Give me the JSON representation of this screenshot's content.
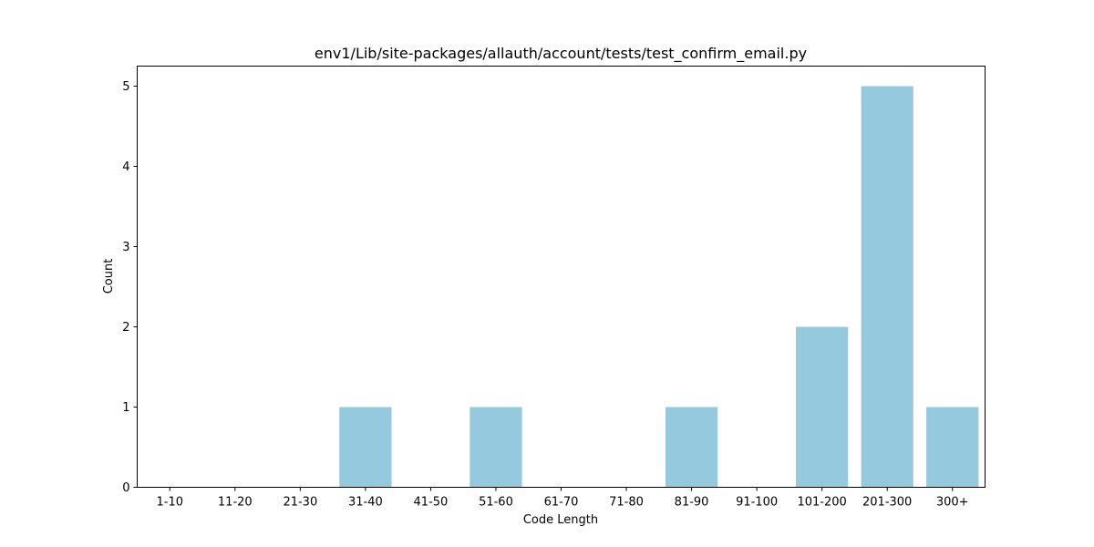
{
  "chart_data": {
    "type": "bar",
    "title": "env1/Lib/site-packages/allauth/account/tests/test_confirm_email.py",
    "xlabel": "Code Length",
    "ylabel": "Count",
    "categories": [
      "1-10",
      "11-20",
      "21-30",
      "31-40",
      "41-50",
      "51-60",
      "61-70",
      "71-80",
      "81-90",
      "91-100",
      "101-200",
      "201-300",
      "300+"
    ],
    "values": [
      0,
      0,
      0,
      1,
      0,
      1,
      0,
      0,
      1,
      0,
      2,
      5,
      1
    ],
    "yticks": [
      0,
      1,
      2,
      3,
      4,
      5
    ],
    "ylim": [
      0,
      5.25
    ],
    "grid": false,
    "bar_color": "#95c9de"
  }
}
